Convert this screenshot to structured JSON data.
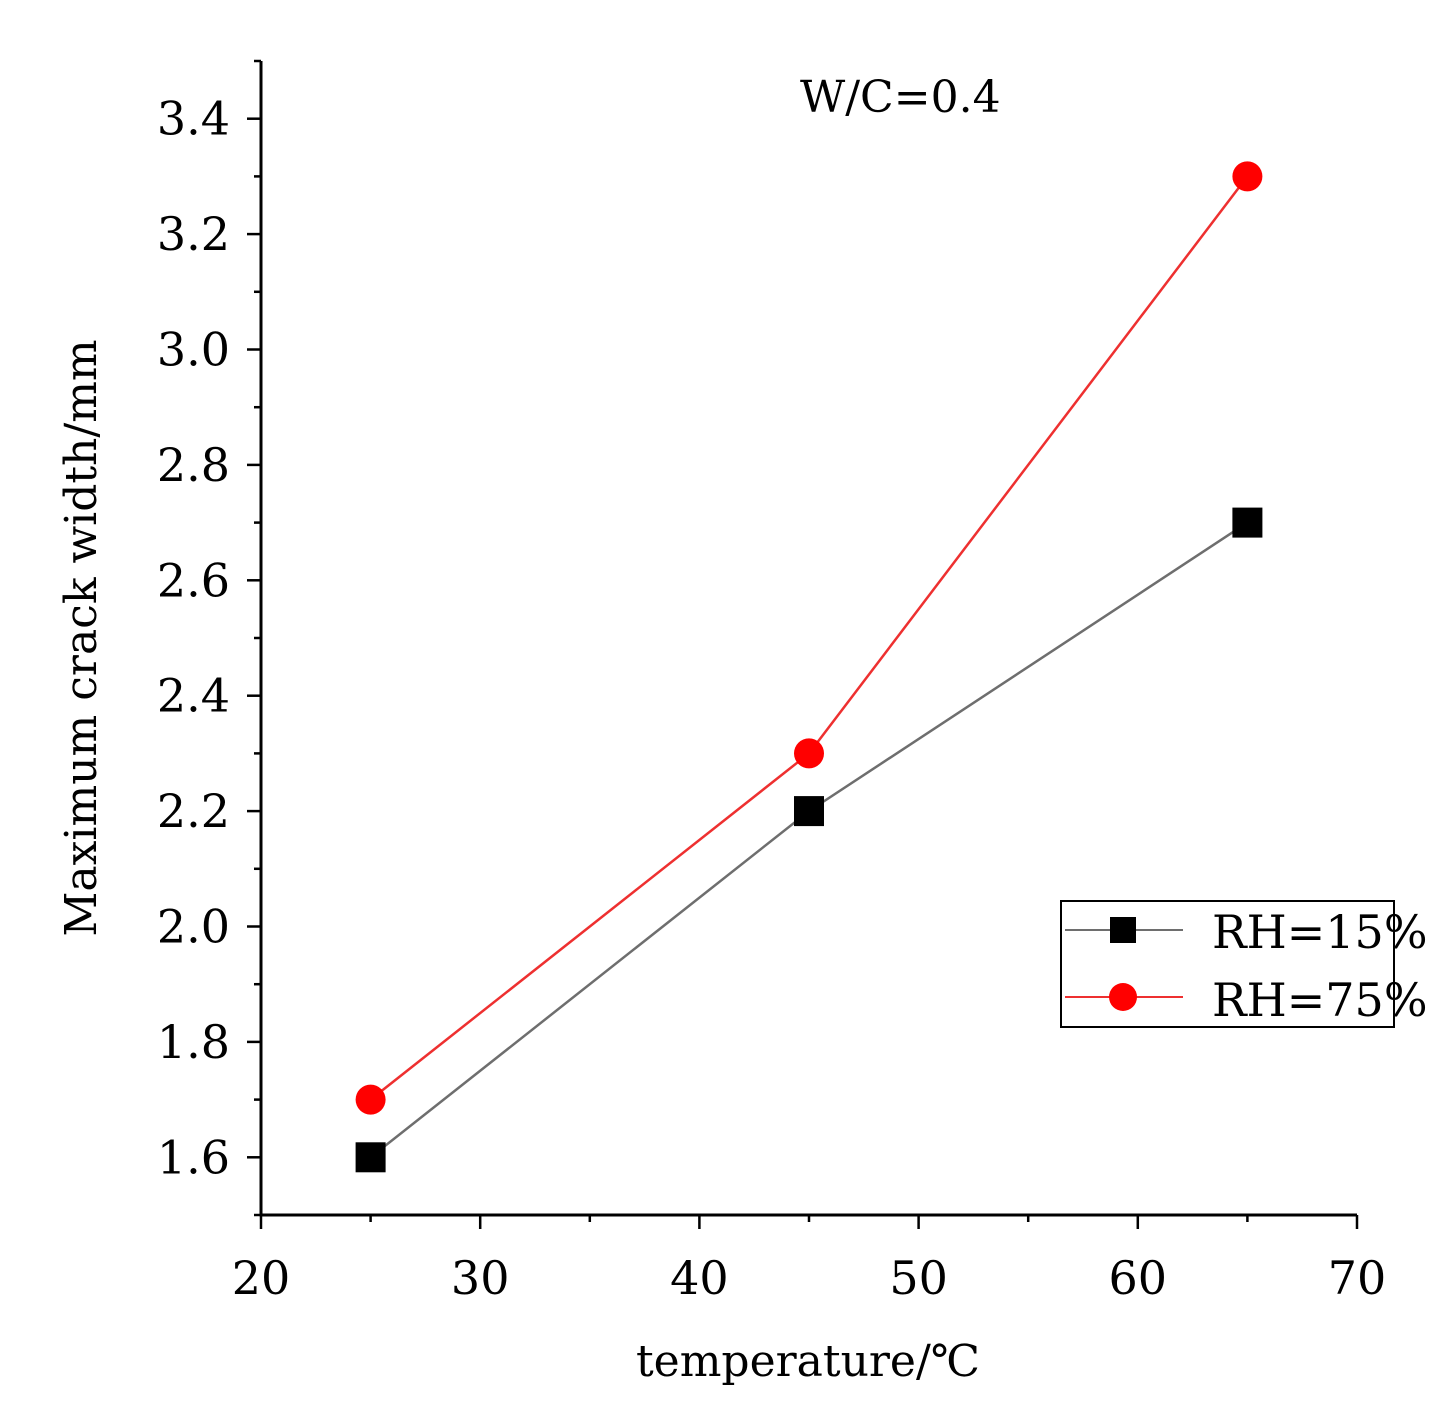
{
  "chart_data": {
    "type": "line",
    "title": "",
    "annotation": "W/C=0.4",
    "xlabel": "temperature/℃",
    "ylabel": "Maximum crack width/mm",
    "xlim": [
      20,
      70
    ],
    "ylim": [
      1.5,
      3.5
    ],
    "xticks": [
      20,
      30,
      40,
      50,
      60,
      70
    ],
    "xtick_labels": [
      "20",
      "30",
      "40",
      "50",
      "60",
      "70"
    ],
    "yticks": [
      1.6,
      1.8,
      2.0,
      2.2,
      2.4,
      2.6,
      2.8,
      3.0,
      3.2,
      3.4
    ],
    "ytick_labels": [
      "1.6",
      "1.8",
      "2.0",
      "2.2",
      "2.4",
      "2.6",
      "2.8",
      "3.0",
      "3.2",
      "3.4"
    ],
    "x_minor_step": 5,
    "y_minor_step": 0.1,
    "grid": false,
    "legend_position": "right",
    "x": [
      25,
      45,
      65
    ],
    "series": [
      {
        "name": "RH=15%",
        "values": [
          1.6,
          2.2,
          2.7
        ],
        "marker": "square",
        "line_color": "#6e6e6e",
        "marker_color": "#000000"
      },
      {
        "name": "RH=75%",
        "values": [
          1.7,
          2.3,
          3.3
        ],
        "marker": "circle",
        "line_color": "#ee3030",
        "marker_color": "#ff0000"
      }
    ]
  }
}
